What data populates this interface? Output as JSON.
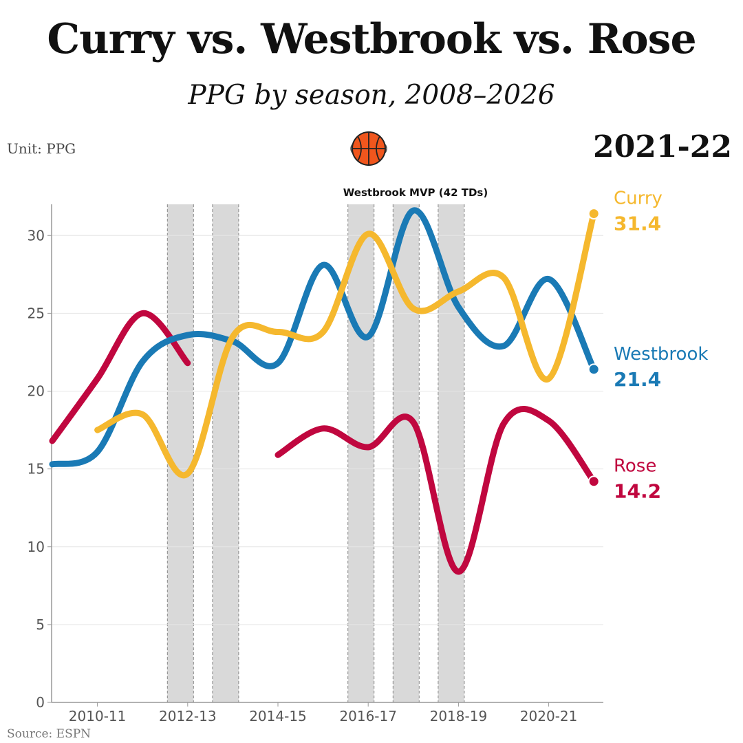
{
  "header": {
    "title": "Curry vs. Westbrook vs. Rose",
    "subtitle": "PPG by season, 2008–2026",
    "unit": "Unit: PPG",
    "current_season": "2021-22",
    "source": "Source: ESPN",
    "icon": "basketball-icon"
  },
  "chart_data": {
    "type": "line",
    "title": "Curry vs. Westbrook vs. Rose",
    "subtitle": "PPG by season, 2008–2026",
    "ylabel": "",
    "xlabel": "",
    "ylim": [
      0,
      32
    ],
    "yticks": [
      0,
      5,
      10,
      15,
      20,
      25,
      30
    ],
    "grid": true,
    "x": [
      "2009-10",
      "2010-11",
      "2011-12",
      "2012-13",
      "2013-14",
      "2014-15",
      "2015-16",
      "2016-17",
      "2017-18",
      "2018-19",
      "2019-20",
      "2020-21",
      "2021-22"
    ],
    "xticks": [
      "2010-11",
      "2012-13",
      "2014-15",
      "2016-17",
      "2018-19",
      "2020-21"
    ],
    "highlight_seasons": [
      "2011-12",
      "2012-13",
      "2015-16",
      "2016-17",
      "2017-18"
    ],
    "annotation": "Westbrook MVP (42 TDs)",
    "series": [
      {
        "name": "Curry",
        "color": "#f5b82e",
        "end_label": "31.4",
        "values": [
          null,
          17.5,
          18.5,
          14.7,
          23.5,
          23.8,
          23.8,
          30.1,
          25.3,
          26.4,
          27.3,
          20.8,
          31.4
        ]
      },
      {
        "name": "Westbrook",
        "color": "#1a7ab5",
        "end_label": "21.4",
        "values": [
          15.3,
          16.1,
          21.9,
          23.6,
          23.2,
          21.8,
          28.1,
          23.5,
          31.6,
          25.4,
          22.9,
          27.2,
          21.4
        ]
      },
      {
        "name": "Rose",
        "color": "#c0073f",
        "end_label": "14.2",
        "values": [
          16.8,
          20.8,
          25.0,
          21.8,
          null,
          15.9,
          17.6,
          16.4,
          18.0,
          8.4,
          17.9,
          18.1,
          14.2
        ]
      }
    ]
  }
}
